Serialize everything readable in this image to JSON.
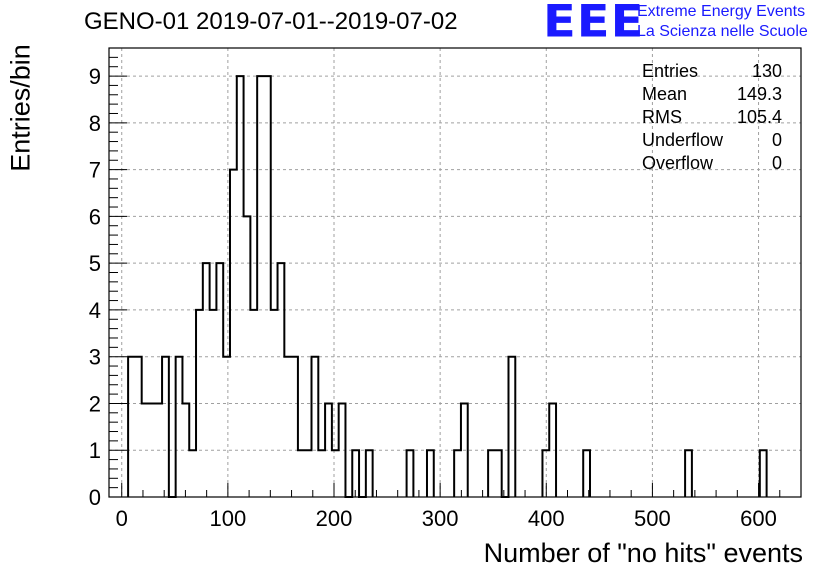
{
  "chart_data": {
    "type": "histogram",
    "title": "GENO-01 2019-07-01--2019-07-02",
    "xlabel": "Number of \"no hits\" events",
    "ylabel": "Entries/bin",
    "xlim": [
      -12,
      640
    ],
    "ylim": [
      0,
      9.6
    ],
    "xticks": [
      0,
      100,
      200,
      300,
      400,
      500,
      600
    ],
    "yticks": [
      0,
      1,
      2,
      3,
      4,
      5,
      6,
      7,
      8,
      9
    ],
    "grid": true,
    "bin_width": 6.4,
    "bins": [
      {
        "x0": 6,
        "y": 3
      },
      {
        "x0": 12.4,
        "y": 3
      },
      {
        "x0": 18.8,
        "y": 2
      },
      {
        "x0": 25.2,
        "y": 2
      },
      {
        "x0": 31.6,
        "y": 2
      },
      {
        "x0": 38,
        "y": 3
      },
      {
        "x0": 44.4,
        "y": 0
      },
      {
        "x0": 50.8,
        "y": 3
      },
      {
        "x0": 57.2,
        "y": 2
      },
      {
        "x0": 63.6,
        "y": 1
      },
      {
        "x0": 70,
        "y": 4
      },
      {
        "x0": 76.4,
        "y": 5
      },
      {
        "x0": 82.8,
        "y": 4
      },
      {
        "x0": 89.2,
        "y": 5
      },
      {
        "x0": 95.6,
        "y": 3
      },
      {
        "x0": 102,
        "y": 7
      },
      {
        "x0": 108.4,
        "y": 9
      },
      {
        "x0": 114.8,
        "y": 6
      },
      {
        "x0": 121.2,
        "y": 4
      },
      {
        "x0": 127.6,
        "y": 9
      },
      {
        "x0": 134,
        "y": 9
      },
      {
        "x0": 140.4,
        "y": 4
      },
      {
        "x0": 146.8,
        "y": 5
      },
      {
        "x0": 153.2,
        "y": 3
      },
      {
        "x0": 159.6,
        "y": 3
      },
      {
        "x0": 166,
        "y": 1
      },
      {
        "x0": 172.4,
        "y": 1
      },
      {
        "x0": 178.8,
        "y": 3
      },
      {
        "x0": 185.2,
        "y": 1
      },
      {
        "x0": 191.6,
        "y": 2
      },
      {
        "x0": 198,
        "y": 1
      },
      {
        "x0": 204.4,
        "y": 2
      },
      {
        "x0": 210.8,
        "y": 0
      },
      {
        "x0": 217.2,
        "y": 1
      },
      {
        "x0": 223.6,
        "y": 0
      },
      {
        "x0": 230,
        "y": 1
      },
      {
        "x0": 268.4,
        "y": 1
      },
      {
        "x0": 287.6,
        "y": 1
      },
      {
        "x0": 313.2,
        "y": 1
      },
      {
        "x0": 319.6,
        "y": 2
      },
      {
        "x0": 345.2,
        "y": 1
      },
      {
        "x0": 351.6,
        "y": 1
      },
      {
        "x0": 358,
        "y": 0
      },
      {
        "x0": 364.4,
        "y": 3
      },
      {
        "x0": 396.4,
        "y": 1
      },
      {
        "x0": 402.8,
        "y": 2
      },
      {
        "x0": 434.8,
        "y": 1
      },
      {
        "x0": 530.8,
        "y": 1
      },
      {
        "x0": 601.2,
        "y": 1
      }
    ],
    "stats": {
      "entries": "130",
      "mean": "149.3",
      "rms": "105.4",
      "underflow": "0",
      "overflow": "0"
    }
  },
  "stats_labels": {
    "entries": "Entries",
    "mean": "Mean",
    "rms": "RMS",
    "underflow": "Underflow",
    "overflow": "Overflow"
  },
  "logo": {
    "mark": "EEE",
    "line1": "Extreme Energy Events",
    "line2": "La Scienza nelle Scuole",
    "color": "#1a1aff"
  }
}
